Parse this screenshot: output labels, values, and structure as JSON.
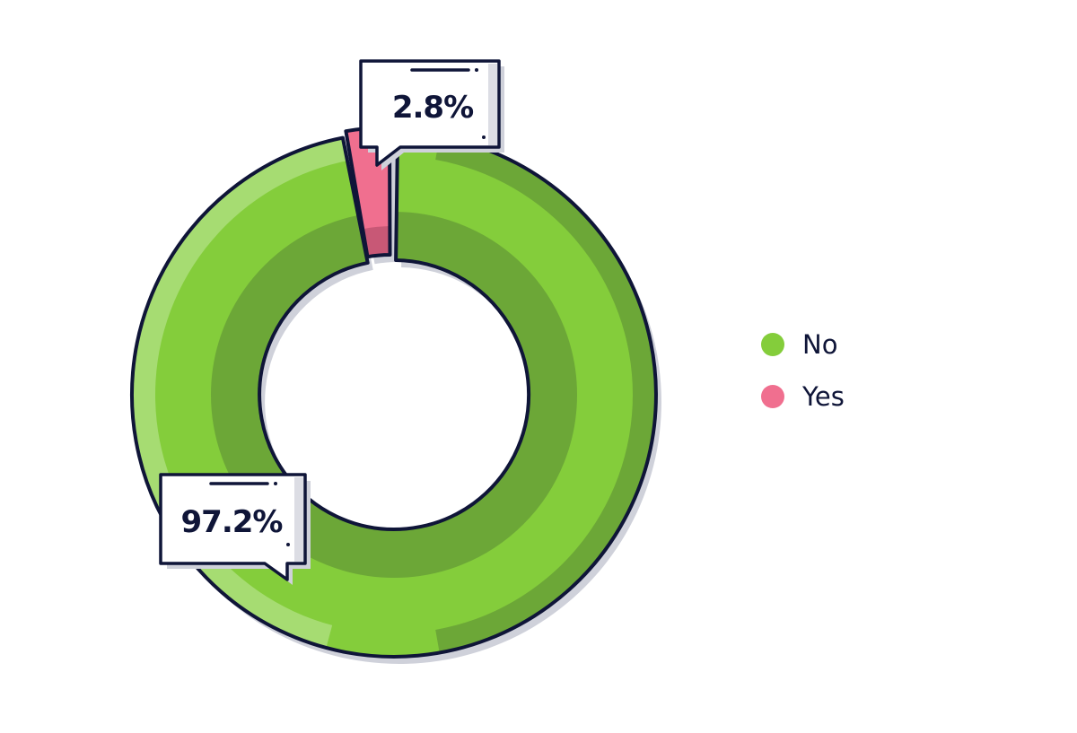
{
  "chart_data": {
    "type": "pie",
    "variant": "donut",
    "title": "",
    "categories": [
      "No",
      "Yes"
    ],
    "values": [
      97.2,
      2.8
    ],
    "unit": "%",
    "colors": {
      "No": "#84cd3b",
      "Yes": "#f06f8f"
    },
    "labels": [
      "97.2%",
      "2.8%"
    ],
    "legend_position": "right"
  },
  "callouts": {
    "no": "97.2%",
    "yes": "2.8%"
  },
  "legend": {
    "items": [
      {
        "label": "No",
        "color": "#84cd3b"
      },
      {
        "label": "Yes",
        "color": "#f06f8f"
      }
    ]
  },
  "colors": {
    "outline": "#0f1538",
    "shadow": "#cfd1da",
    "green_main": "#84cd3b",
    "green_light": "#a6dc72",
    "green_dark": "#6ca737",
    "pink_main": "#f06f8f",
    "pink_dark": "#c85876"
  }
}
